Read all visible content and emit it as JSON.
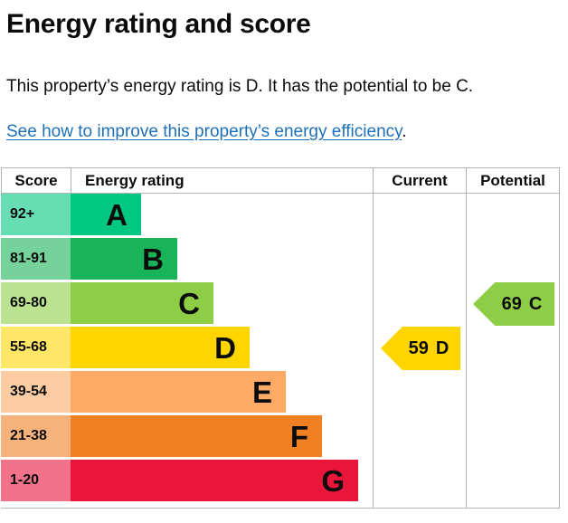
{
  "header": {
    "title": "Energy rating and score"
  },
  "summary": {
    "text": "This property’s energy rating is D. It has the potential to be C."
  },
  "improvement_link": {
    "text": "See how to improve this property’s energy efficiency",
    "suffix": ".",
    "color": "#1d70b8"
  },
  "colors": {
    "text": "#0b0c0c",
    "link": "#1d70b8",
    "table_border": "#b1b4b6"
  },
  "chart_data": {
    "type": "bar",
    "title": "Energy rating and score",
    "columns": [
      "Score",
      "Energy rating",
      "Current",
      "Potential"
    ],
    "bands": [
      {
        "letter": "A",
        "score_range": "92+",
        "color": "#00c781"
      },
      {
        "letter": "B",
        "score_range": "81-91",
        "color": "#19b459"
      },
      {
        "letter": "C",
        "score_range": "69-80",
        "color": "#8dce46"
      },
      {
        "letter": "D",
        "score_range": "55-68",
        "color": "#ffd500"
      },
      {
        "letter": "E",
        "score_range": "39-54",
        "color": "#fcaa65"
      },
      {
        "letter": "F",
        "score_range": "21-38",
        "color": "#ef8023"
      },
      {
        "letter": "G",
        "score_range": "1-20",
        "color": "#e9153b"
      }
    ],
    "current": {
      "value": "59",
      "band": "D",
      "color": "#ffd500"
    },
    "potential": {
      "value": "69",
      "band": "C",
      "color": "#8dce46"
    }
  }
}
